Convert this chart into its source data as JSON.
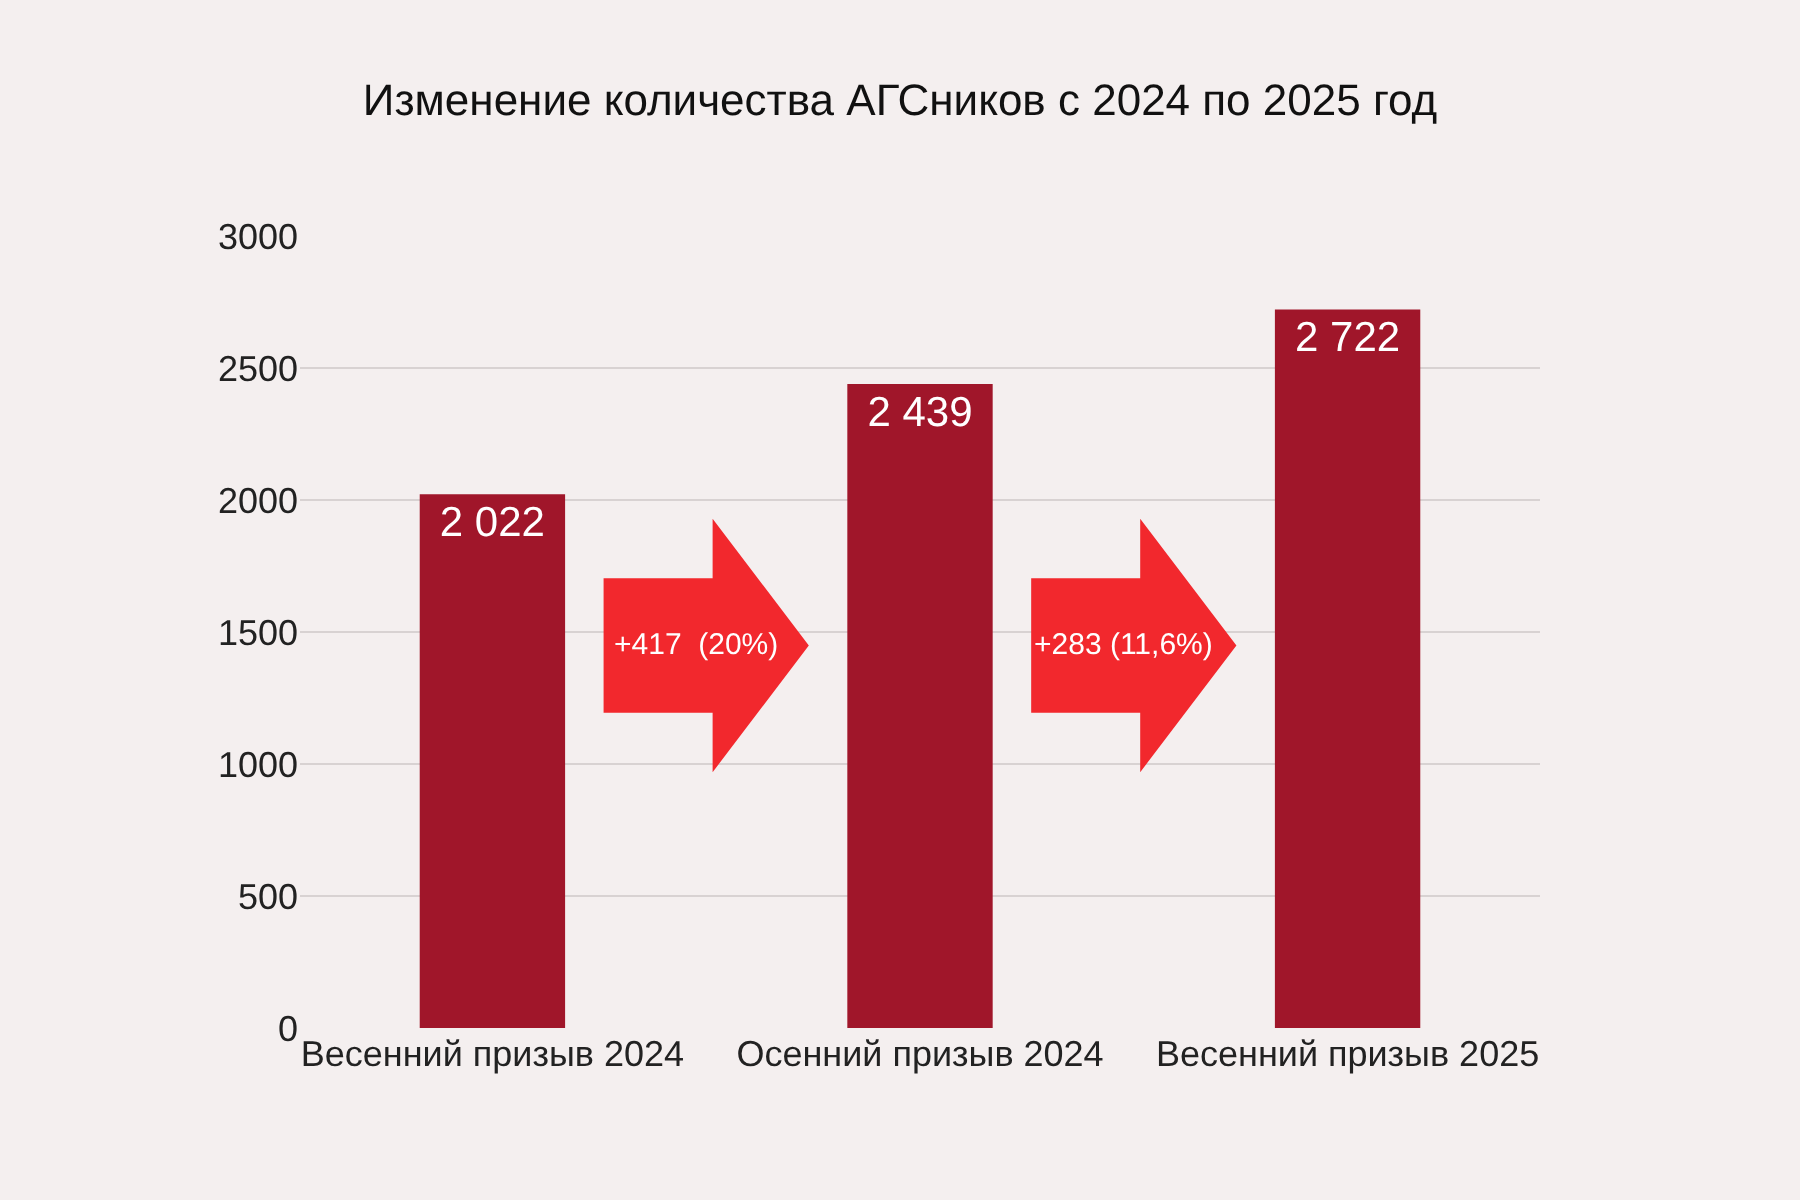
{
  "chart_data": {
    "type": "bar",
    "title": "Изменение количества АГСников с 2024 по 2025 год",
    "categories": [
      "Весенний призыв 2024",
      "Осенний призыв 2024",
      "Весенний призыв 2025"
    ],
    "values": [
      2022,
      2439,
      2722
    ],
    "value_labels": [
      "2 022",
      "2 439",
      "2 722"
    ],
    "color": "#a0162a",
    "ylim": [
      0,
      3000
    ],
    "yticks": [
      0,
      500,
      1000,
      1500,
      2000,
      2500,
      3000
    ],
    "grid": "y",
    "annotations": [
      "+417  (20%)",
      "+283 (11,6%)"
    ]
  }
}
